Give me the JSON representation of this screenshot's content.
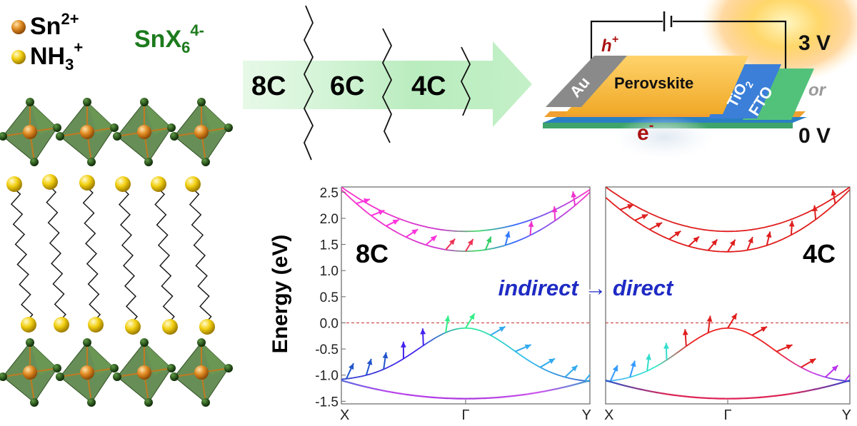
{
  "legend": {
    "sn_label": "Sn",
    "sn_charge": "2+",
    "nh_label": "NH",
    "nh_sub": "3",
    "nh_charge": "+",
    "octahedron_label": "SnX",
    "octahedron_sub": "6",
    "octahedron_charge": "4-"
  },
  "chain_arrow": {
    "labels": [
      "8C",
      "6C",
      "4C"
    ]
  },
  "device": {
    "layers": [
      "Au",
      "Perovskite",
      "TiO",
      "FTO"
    ],
    "tio_sub": "2",
    "hole_label": "h",
    "hole_charge": "+",
    "electron_label": "e",
    "electron_charge": "-",
    "voltage_high": "3 V",
    "voltage_or": "or",
    "voltage_low": "0 V"
  },
  "chart_data": [
    {
      "type": "line",
      "panel_label": "8C",
      "ylabel": "Energy (eV)",
      "ylim": [
        -1.55,
        2.6
      ],
      "yticks": [
        2.5,
        2.0,
        1.5,
        1.0,
        0.5,
        0.0,
        -0.5,
        -1.0,
        -1.5
      ],
      "ytick_labels": [
        "2.5",
        "2.0",
        "1.5",
        "1.0",
        "0.5",
        "0.0",
        "-0.5",
        "-1.0",
        "-1.5"
      ],
      "xticks": [
        "X",
        "Γ",
        "Y"
      ],
      "fermi_level": 0.0,
      "gap": "indirect",
      "series": [
        {
          "values": [
            {
              "k": 0,
              "E": 2.6
            },
            {
              "k": 0.5,
              "E": 1.75
            },
            {
              "k": 1,
              "E": 2.55
            }
          ]
        },
        {
          "values": [
            {
              "k": 0,
              "E": 2.55
            },
            {
              "k": 0.5,
              "E": 1.37
            },
            {
              "k": 1,
              "E": 2.5
            }
          ]
        },
        {
          "values": [
            {
              "k": 0,
              "E": -1.08
            },
            {
              "k": 0.5,
              "E": -0.1
            },
            {
              "k": 1,
              "E": -1.12
            }
          ]
        },
        {
          "values": [
            {
              "k": 0,
              "E": -1.1
            },
            {
              "k": 0.5,
              "E": -1.45
            },
            {
              "k": 1,
              "E": -1.1
            }
          ]
        }
      ]
    },
    {
      "type": "line",
      "panel_label": "4C",
      "ylim": [
        -1.55,
        2.6
      ],
      "xticks": [
        "X",
        "Γ",
        "Y"
      ],
      "fermi_level": 0.0,
      "gap": "direct",
      "series": [
        {
          "values": [
            {
              "k": 0,
              "E": 2.6
            },
            {
              "k": 0.5,
              "E": 1.75
            },
            {
              "k": 1,
              "E": 2.6
            }
          ]
        },
        {
          "values": [
            {
              "k": 0,
              "E": 2.4
            },
            {
              "k": 0.5,
              "E": 1.36
            },
            {
              "k": 1,
              "E": 2.55
            }
          ]
        },
        {
          "values": [
            {
              "k": 0,
              "E": -1.12
            },
            {
              "k": 0.5,
              "E": -0.1
            },
            {
              "k": 1,
              "E": -1.12
            }
          ]
        },
        {
          "values": [
            {
              "k": 0,
              "E": -1.1
            },
            {
              "k": 0.5,
              "E": -1.45
            },
            {
              "k": 1,
              "E": -1.1
            }
          ]
        }
      ]
    }
  ],
  "annotation": {
    "text_left": "indirect",
    "arrow": "→",
    "text_right": "direct"
  },
  "colors": {
    "sn": "#d97a16",
    "nh": "#e6c000",
    "halide": "#1f4d12",
    "octahedron": "#4e7a39",
    "green_label": "#1c7a1c",
    "arrow_fill": "#bff0c4",
    "annotation": "#1f2bc4",
    "red_band": "#e01e1e",
    "hole_color": "#aa1111"
  }
}
